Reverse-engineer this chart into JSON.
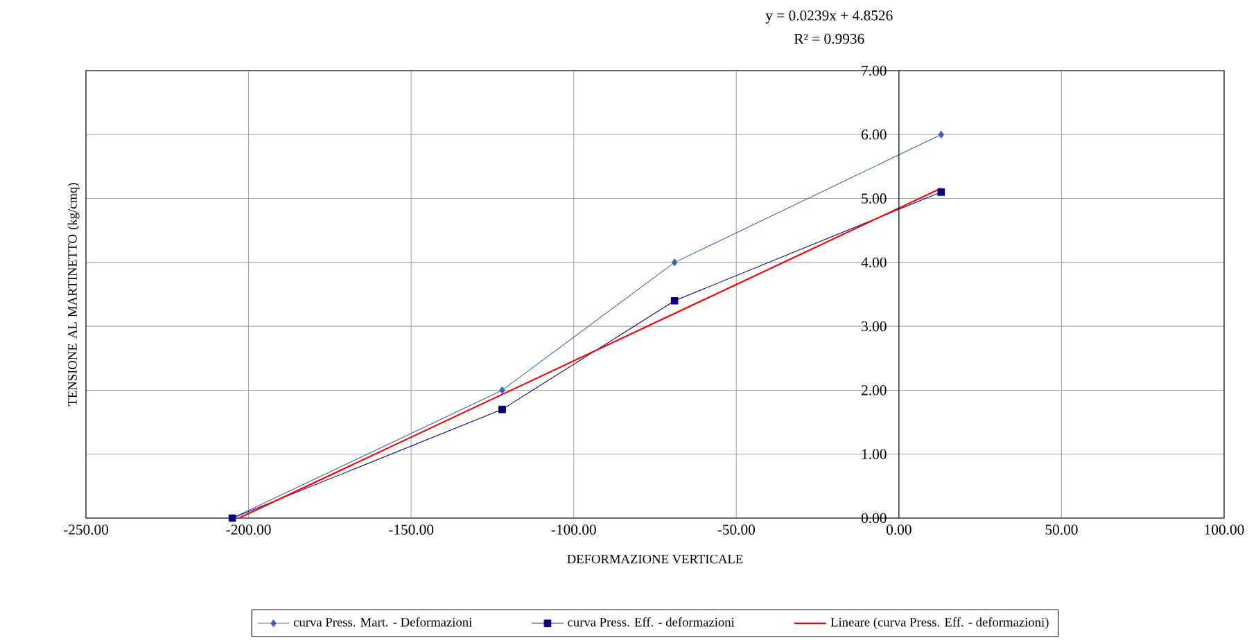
{
  "chart_data": {
    "type": "line",
    "xlabel": "DEFORMAZIONE VERTICALE",
    "ylabel": "TENSIONE AL MARTINETTO (kg/cmq)",
    "annotations": [
      "y = 0.0239x + 4.8526",
      "R² = 0.9936"
    ],
    "xlim": [
      -250,
      100
    ],
    "ylim": [
      0,
      7
    ],
    "xticks": [
      {
        "value": -250,
        "label": "-250.00"
      },
      {
        "value": -200,
        "label": "-200.00"
      },
      {
        "value": -150,
        "label": "-150.00"
      },
      {
        "value": -100,
        "label": "-100.00"
      },
      {
        "value": -50,
        "label": "-50.00"
      },
      {
        "value": 0,
        "label": "0.00"
      },
      {
        "value": 50,
        "label": "50.00"
      },
      {
        "value": 100,
        "label": "100.00"
      }
    ],
    "yticks": [
      {
        "value": 0,
        "label": "0.00"
      },
      {
        "value": 1,
        "label": "1.00"
      },
      {
        "value": 2,
        "label": "2.00"
      },
      {
        "value": 3,
        "label": "3.00"
      },
      {
        "value": 4,
        "label": "4.00"
      },
      {
        "value": 5,
        "label": "5.00"
      },
      {
        "value": 6,
        "label": "6.00"
      },
      {
        "value": 7,
        "label": "7.00"
      }
    ],
    "grid": true,
    "legend": "bottom",
    "series": [
      {
        "name": "curva Press. Mart. - Deformazioni",
        "color": "#4060c0",
        "marker": "diamond",
        "x": [
          -205,
          -122,
          -69,
          13
        ],
        "values": [
          0,
          2,
          4,
          6
        ]
      },
      {
        "name": "curva Press. Eff. - deformazioni",
        "color": "#000080",
        "marker": "square",
        "x": [
          -205,
          -122,
          -69,
          13
        ],
        "values": [
          0,
          1.7,
          3.4,
          5.1
        ]
      },
      {
        "name": "Lineare (curva Press. Eff. - deformazioni)",
        "color": "#ff0000",
        "marker": "none",
        "x": [
          -203,
          13
        ],
        "values": [
          0,
          5.16
        ]
      }
    ]
  }
}
